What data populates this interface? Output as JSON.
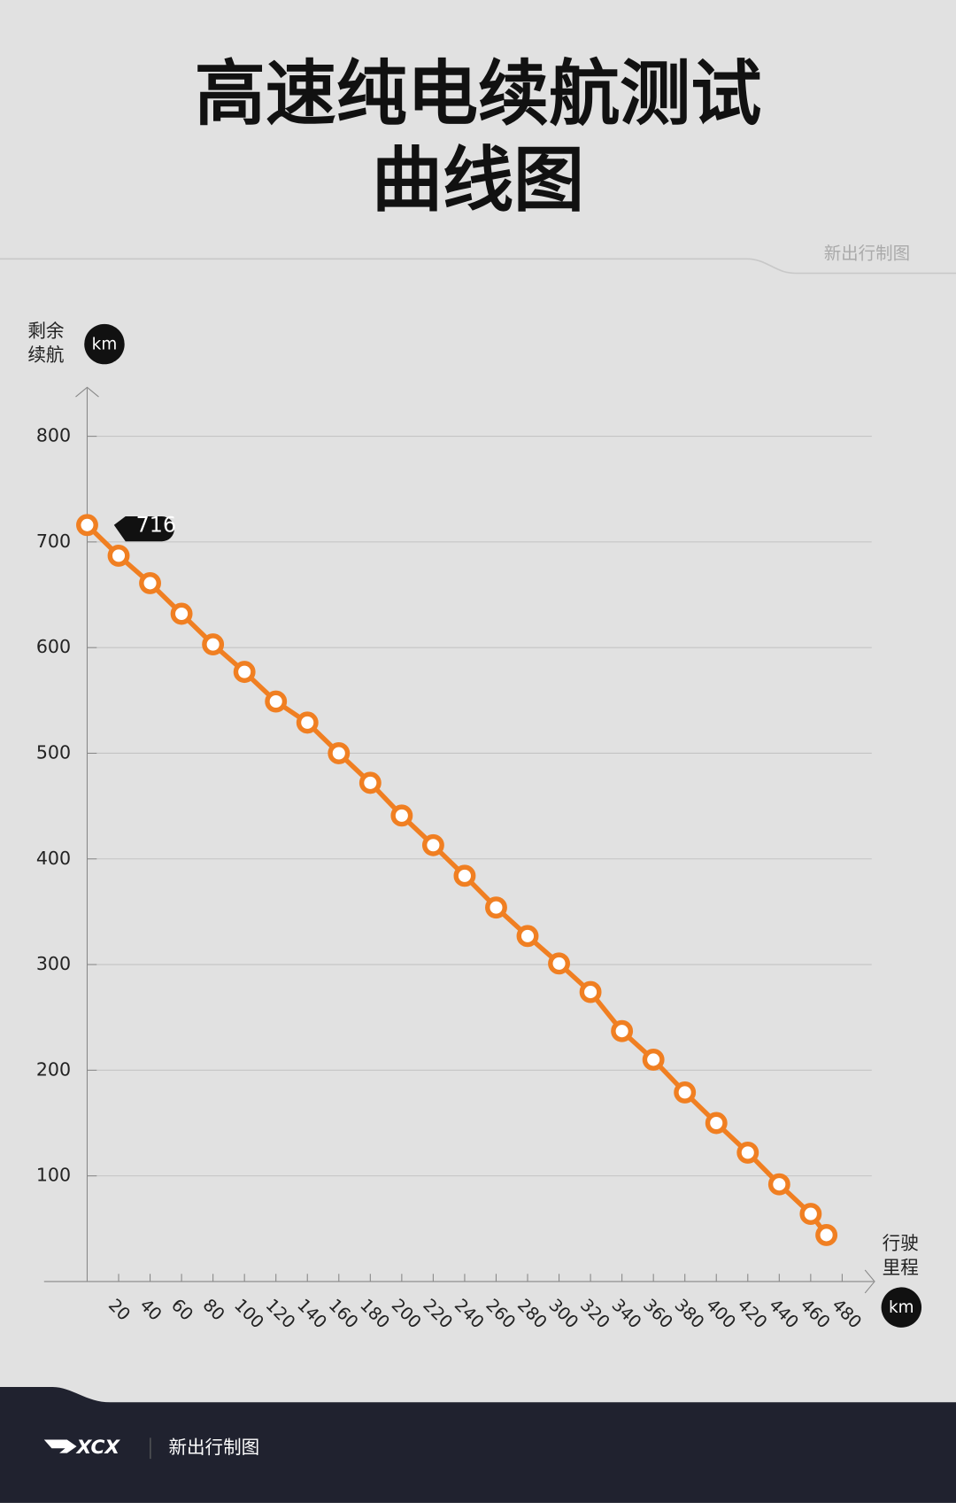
{
  "header": {
    "title_lines": [
      "高速纯电续航测试",
      "曲线图"
    ],
    "credit": "新出行制图"
  },
  "chart_data": {
    "type": "line",
    "y_label_lines": [
      "剩余",
      "续航"
    ],
    "y_unit": "km",
    "x_label_lines": [
      "行驶",
      "里程"
    ],
    "x_unit": "km",
    "x": [
      0,
      20,
      40,
      60,
      80,
      100,
      120,
      140,
      160,
      180,
      200,
      220,
      240,
      260,
      280,
      300,
      320,
      340,
      360,
      380,
      400,
      420,
      440,
      460,
      470
    ],
    "series": [
      {
        "name": "剩余续航",
        "color": "#f07f22",
        "values": [
          716,
          687,
          661,
          632,
          603,
          577,
          549,
          529,
          500,
          472,
          441,
          413,
          384,
          354,
          327,
          301,
          274,
          237,
          210,
          179,
          150,
          122,
          92,
          64,
          44
        ]
      }
    ],
    "xlim": [
      0,
      500
    ],
    "xticks": [
      20,
      40,
      60,
      80,
      100,
      120,
      140,
      160,
      180,
      200,
      220,
      240,
      260,
      280,
      300,
      320,
      340,
      360,
      380,
      400,
      420,
      440,
      460,
      480
    ],
    "ylim": [
      0,
      850
    ],
    "yticks": [
      100,
      200,
      300,
      400,
      500,
      600,
      700,
      800
    ],
    "grid": true
  },
  "footer": {
    "logo": "XCX",
    "credit": "新出行制图"
  }
}
